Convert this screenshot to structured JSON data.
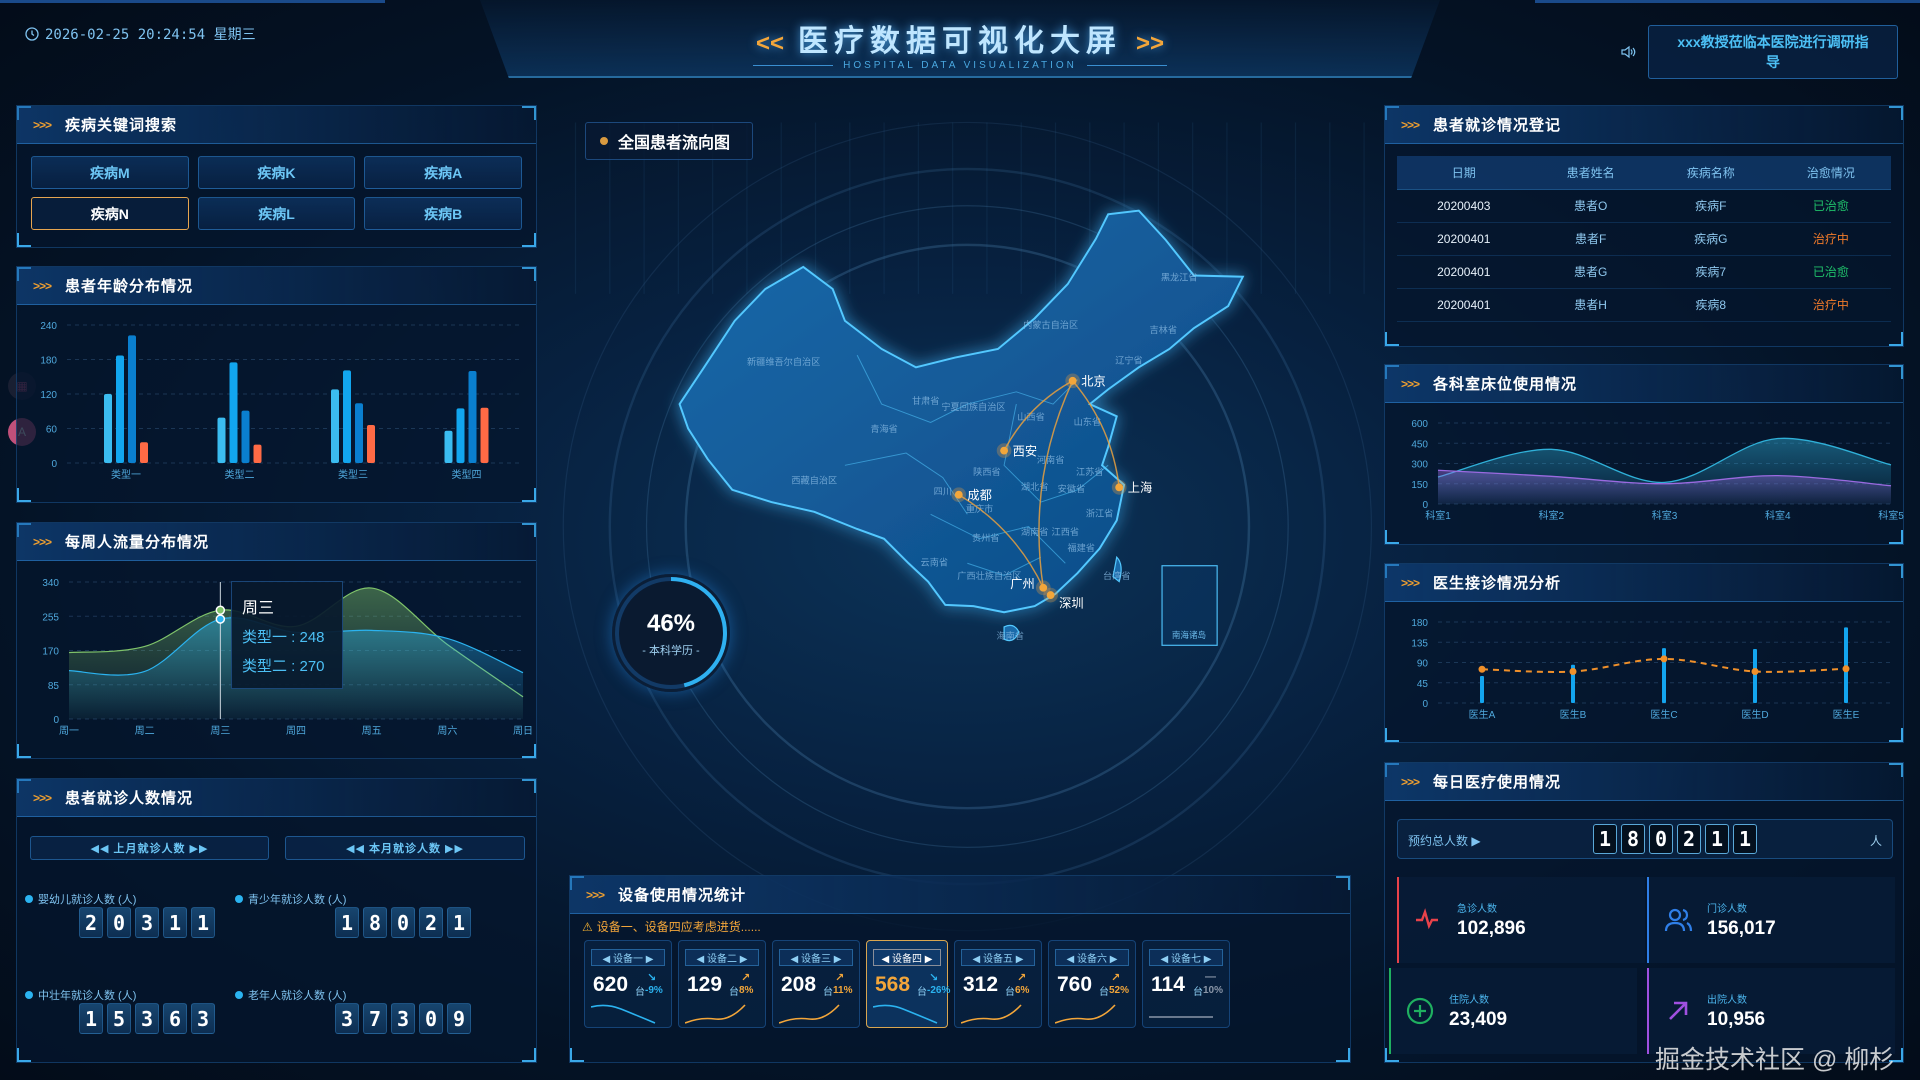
{
  "header": {
    "datetime": "2026-02-25 20:24:54 星期三",
    "title_left": "<<",
    "title": "医疗数据可视化大屏",
    "title_right": ">>",
    "subtitle": "HOSPITAL DATA VISUALIZATION",
    "notice": "xxx教授莅临本医院进行调研指导"
  },
  "search": {
    "title": "疾病关键词搜索",
    "keywords": [
      "疾病M",
      "疾病K",
      "疾病A",
      "疾病N",
      "疾病L",
      "疾病B"
    ],
    "selected": "疾病N"
  },
  "age": {
    "title": "患者年龄分布情况"
  },
  "weekly": {
    "title": "每周人流量分布情况",
    "tooltip": {
      "title": "周三",
      "rows": [
        "类型一 : 248",
        "类型二 : 270"
      ]
    }
  },
  "visits": {
    "title": "患者就诊人数情况",
    "buttons": [
      "◀◀  上月就诊人数  ▶▶",
      "◀◀  本月就诊人数  ▶▶"
    ],
    "groups": [
      {
        "label": "婴幼儿就诊人数 (人)",
        "value": "20311"
      },
      {
        "label": "青少年就诊人数 (人)",
        "value": "18021"
      },
      {
        "label": "中壮年就诊人数 (人)",
        "value": "15363"
      },
      {
        "label": "老年人就诊人数 (人)",
        "value": "37309"
      }
    ]
  },
  "map": {
    "title": "全国患者流向图",
    "provinces": [
      "新疆维吾尔自治区",
      "内蒙古自治区",
      "黑龙江省",
      "吉林省",
      "辽宁省",
      "青海省",
      "甘肃省",
      "宁夏回族自治区",
      "西藏自治区",
      "四川",
      "重庆市",
      "山西省",
      "陕西省",
      "河南省",
      "山东省",
      "江苏省",
      "安徽省",
      "湖北省",
      "浙江省",
      "湖南省",
      "江西省",
      "贵州省",
      "云南省",
      "福建省",
      "广西壮族自治区",
      "台湾省",
      "海南省"
    ],
    "inset_label": "南海诸岛",
    "cities": [
      "北京",
      "西安",
      "成都",
      "上海",
      "广州",
      "深圳"
    ],
    "routes": [
      [
        "西安",
        "北京"
      ],
      [
        "北京",
        "上海"
      ],
      [
        "成都",
        "广州"
      ],
      [
        "广州",
        "北京"
      ]
    ],
    "ring": {
      "value": 46,
      "value_label": "46%",
      "label": "- 本科学历 -"
    }
  },
  "equipment": {
    "title": "设备使用情况统计",
    "warning": "设备一、设备四应考虑进货......",
    "unit": "台",
    "selected": "设备四",
    "items": [
      {
        "name": "◀ 设备一 ▶",
        "value": "620",
        "change": "-9%",
        "trend": "down"
      },
      {
        "name": "◀ 设备二 ▶",
        "value": "129",
        "change": "8%",
        "trend": "up"
      },
      {
        "name": "◀ 设备三 ▶",
        "value": "208",
        "change": "11%",
        "trend": "up"
      },
      {
        "name": "◀ 设备四 ▶",
        "value": "568",
        "change": "-26%",
        "trend": "down"
      },
      {
        "name": "◀ 设备五 ▶",
        "value": "312",
        "change": "6%",
        "trend": "up"
      },
      {
        "name": "◀ 设备六 ▶",
        "value": "760",
        "change": "52%",
        "trend": "up"
      },
      {
        "name": "◀ 设备七 ▶",
        "value": "114",
        "change": "10%",
        "trend": "flat"
      }
    ],
    "colors": {
      "up": "#f3a63a",
      "down": "#2bb3f0",
      "flat": "#8a96a8"
    }
  },
  "register": {
    "title": "患者就诊情况登记",
    "columns": [
      "日期",
      "患者姓名",
      "疾病名称",
      "治愈情况"
    ],
    "rows": [
      [
        "20200403",
        "患者O",
        "疾病F",
        "已治愈"
      ],
      [
        "20200401",
        "患者F",
        "疾病G",
        "治疗中"
      ],
      [
        "20200401",
        "患者G",
        "疾病7",
        "已治愈"
      ],
      [
        "20200401",
        "患者H",
        "疾病8",
        "治疗中"
      ]
    ],
    "status_colors": {
      "已治愈": "#1fc06a",
      "治疗中": "#f07a2a"
    }
  },
  "beds": {
    "title": "各科室床位使用情况"
  },
  "doctors": {
    "title": "医生接诊情况分析"
  },
  "daily": {
    "title": "每日医疗使用情况",
    "appointment_label": "预约总人数 ▶",
    "appointment_value": "180211",
    "appointment_unit": "人",
    "stats": [
      {
        "label": "急诊人数",
        "value": "102,896",
        "icon": "heartbeat-icon",
        "color": "#e8424a"
      },
      {
        "label": "门诊人数",
        "value": "156,017",
        "icon": "users-icon",
        "color": "#2f7fe8"
      },
      {
        "label": "住院人数",
        "value": "23,409",
        "icon": "plus-circle-icon",
        "color": "#1fb060"
      },
      {
        "label": "出院人数",
        "value": "10,956",
        "icon": "arrow-up-right-icon",
        "color": "#a050e0"
      }
    ]
  },
  "watermark": "掘金技术社区 @ 柳杉",
  "chart_data": [
    {
      "id": "age",
      "type": "bar",
      "categories": [
        "类型一",
        "类型二",
        "类型三",
        "类型四"
      ],
      "series": [
        {
          "values": [
            120,
            79,
            128,
            56
          ],
          "color": "#3bbcf0"
        },
        {
          "values": [
            187,
            175,
            161,
            95
          ],
          "color": "#12a6ef"
        },
        {
          "values": [
            222,
            91,
            104,
            160
          ],
          "color": "#0a7fcf"
        },
        {
          "values": [
            36,
            32,
            66,
            96
          ],
          "color": "#ff6a45"
        }
      ],
      "ylim": [
        0,
        240
      ],
      "yticks": [
        0,
        60,
        120,
        180,
        240
      ],
      "grid": true
    },
    {
      "id": "weekly",
      "type": "area",
      "categories": [
        "周一",
        "周二",
        "周三",
        "周四",
        "周五",
        "周六",
        "周日"
      ],
      "series": [
        {
          "name": "类型二",
          "values": [
            165,
            180,
            270,
            230,
            325,
            185,
            55
          ],
          "color": "#7fc36a"
        },
        {
          "name": "类型一",
          "values": [
            120,
            118,
            248,
            215,
            220,
            200,
            115
          ],
          "color": "#2bb3f0"
        }
      ],
      "ylim": [
        0,
        340
      ],
      "yticks": [
        0,
        85,
        170,
        255,
        340
      ],
      "grid": true,
      "highlight": "周三"
    },
    {
      "id": "beds",
      "type": "area",
      "categories": [
        "科室1",
        "科室2",
        "科室3",
        "科室4",
        "科室5"
      ],
      "series": [
        {
          "values": [
            200,
            405,
            160,
            485,
            290
          ],
          "color": "#2fb0d8"
        },
        {
          "values": [
            250,
            205,
            150,
            210,
            135
          ],
          "color": "#9a6ae0"
        }
      ],
      "ylim": [
        0,
        600
      ],
      "yticks": [
        0,
        150,
        300,
        450,
        600
      ],
      "grid": true
    },
    {
      "id": "doctors",
      "type": "bar+line",
      "categories": [
        "医生A",
        "医生B",
        "医生C",
        "医生D",
        "医生E"
      ],
      "series": [
        {
          "type": "bar",
          "values": [
            60,
            85,
            122,
            120,
            168
          ],
          "color": "#13a5ef"
        },
        {
          "type": "line",
          "values": [
            75,
            70,
            98,
            70,
            76
          ],
          "color": "#f0902a",
          "dashed": true
        }
      ],
      "ylim": [
        0,
        180
      ],
      "yticks": [
        0,
        45,
        90,
        135,
        180
      ],
      "grid": true
    }
  ]
}
